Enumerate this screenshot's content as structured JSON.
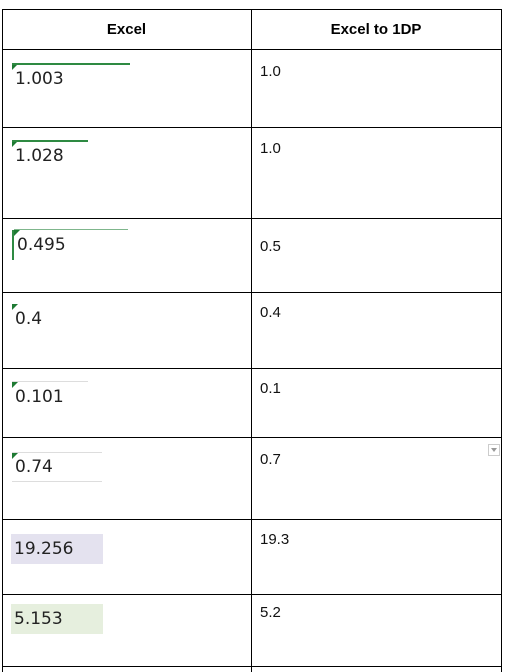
{
  "table": {
    "headers": [
      "Excel",
      "Excel to 1DP"
    ],
    "rows": [
      {
        "excel": "1.003",
        "rounded": "1.0"
      },
      {
        "excel": "1.028",
        "rounded": "1.0"
      },
      {
        "excel": "0.495",
        "rounded": "0.5"
      },
      {
        "excel": "0.4",
        "rounded": "0.4"
      },
      {
        "excel": "0.101",
        "rounded": "0.1"
      },
      {
        "excel": "0.74",
        "rounded": "0.7"
      },
      {
        "excel": "19.256",
        "rounded": "19.3"
      },
      {
        "excel": "5.153",
        "rounded": "5.2"
      }
    ]
  },
  "colors": {
    "error_indicator": "#1e7a33",
    "highlight_purple": "#e4e2ef",
    "highlight_green": "#e6efde"
  }
}
